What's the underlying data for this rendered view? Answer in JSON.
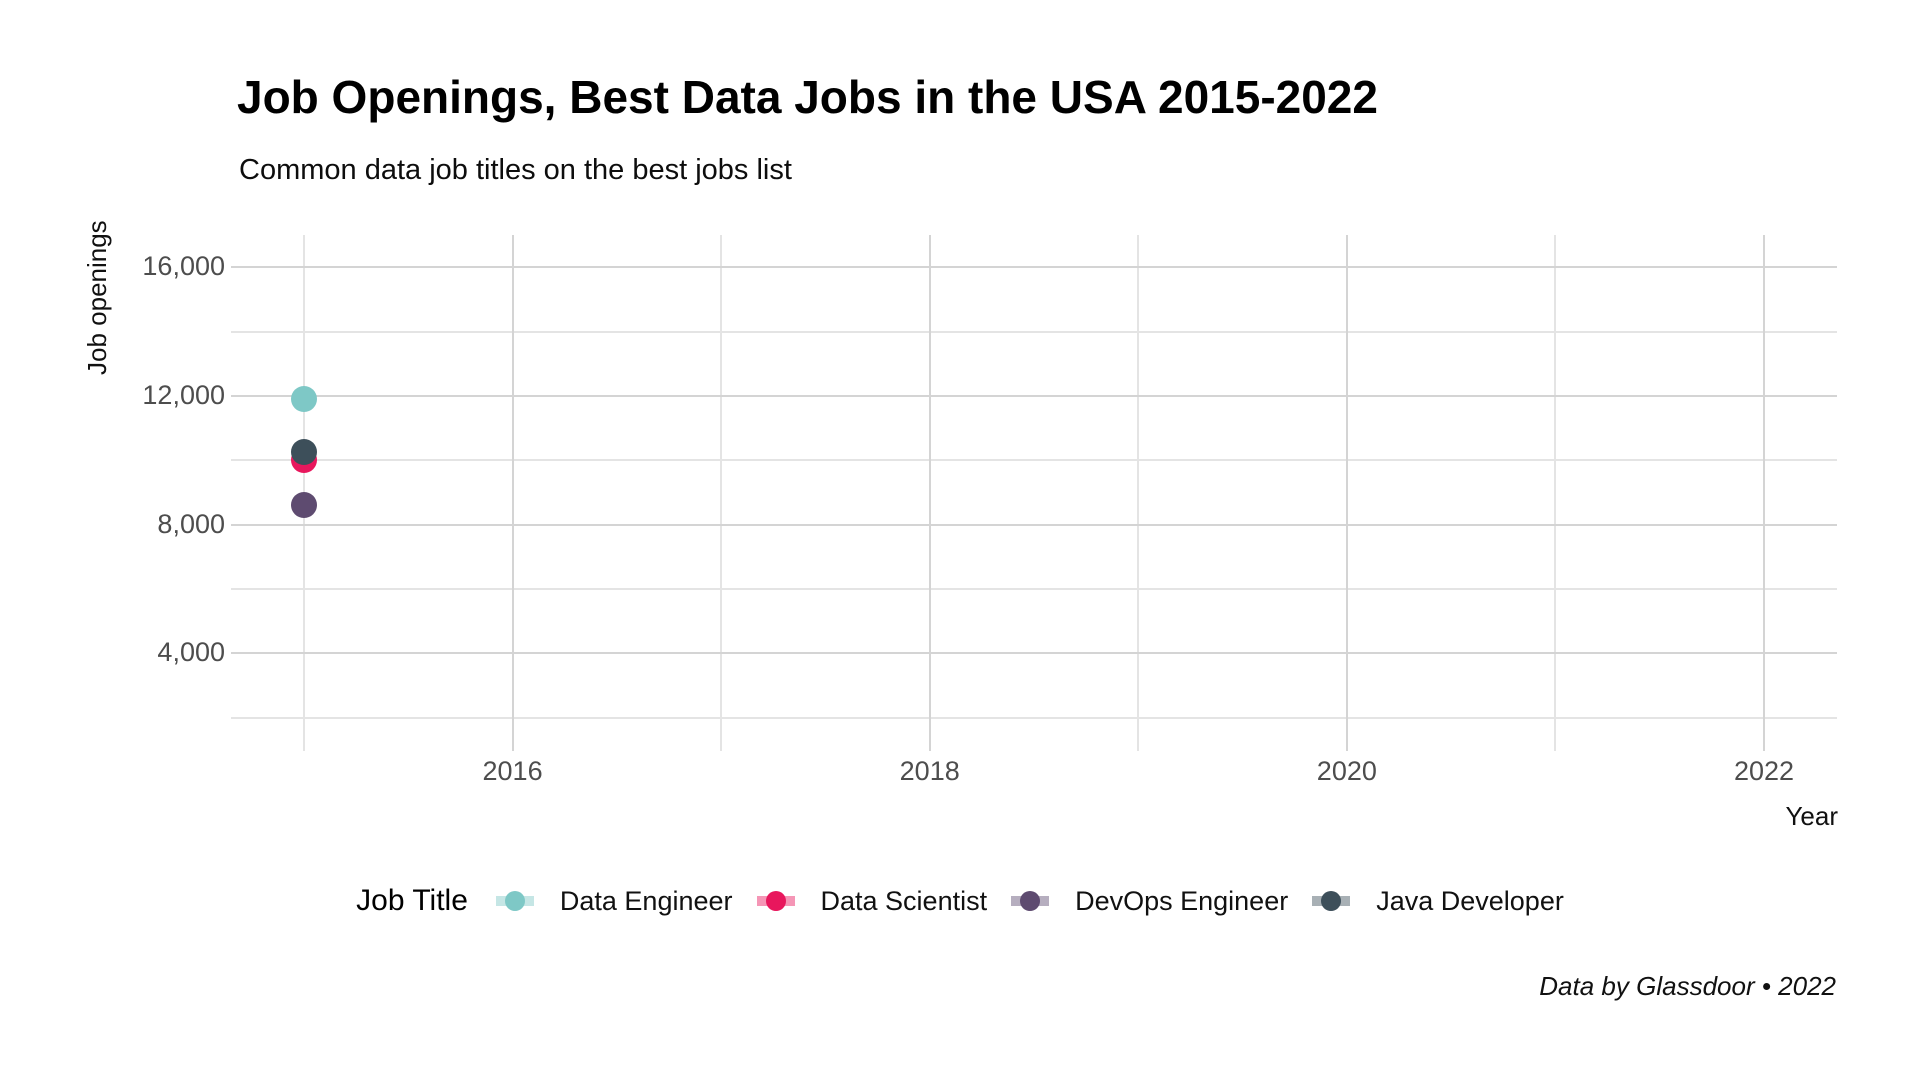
{
  "header": {
    "title": "Job Openings, Best Data Jobs in the USA 2015-2022",
    "subtitle": "Common data job titles on the best jobs list"
  },
  "caption": "Data by Glassdoor • 2022",
  "chart_data": {
    "type": "scatter",
    "title": "Job Openings, Best Data Jobs in the USA 2015-2022",
    "subtitle": "Common data job titles on the best jobs list",
    "xlabel": "Year",
    "ylabel": "Job openings",
    "legend_title": "Job Title",
    "legend_position": "bottom",
    "grid": true,
    "x_domain": [
      2014.65,
      2022.35
    ],
    "y_domain": [
      960,
      17000
    ],
    "x_major_ticks": [
      {
        "value": 2016,
        "label": "2016"
      },
      {
        "value": 2018,
        "label": "2018"
      },
      {
        "value": 2020,
        "label": "2020"
      },
      {
        "value": 2022,
        "label": "2022"
      }
    ],
    "x_minor_ticks": [
      2015,
      2017,
      2019,
      2021
    ],
    "y_major_ticks": [
      {
        "value": 4000,
        "label": "4,000"
      },
      {
        "value": 8000,
        "label": "8,000"
      },
      {
        "value": 12000,
        "label": "12,000"
      },
      {
        "value": 16000,
        "label": "16,000"
      }
    ],
    "y_minor_ticks": [
      2000,
      6000,
      10000,
      14000
    ],
    "series": [
      {
        "name": "Data Engineer",
        "color": "#7EC8C6",
        "points": [
          {
            "x": 2015,
            "y": 11900
          }
        ]
      },
      {
        "name": "Data Scientist",
        "color": "#E8175D",
        "points": [
          {
            "x": 2015,
            "y": 10000
          }
        ]
      },
      {
        "name": "DevOps Engineer",
        "color": "#5E4B70",
        "points": [
          {
            "x": 2015,
            "y": 8600
          }
        ]
      },
      {
        "name": "Java Developer",
        "color": "#3D4F5A",
        "points": [
          {
            "x": 2015,
            "y": 10250
          }
        ]
      }
    ]
  }
}
